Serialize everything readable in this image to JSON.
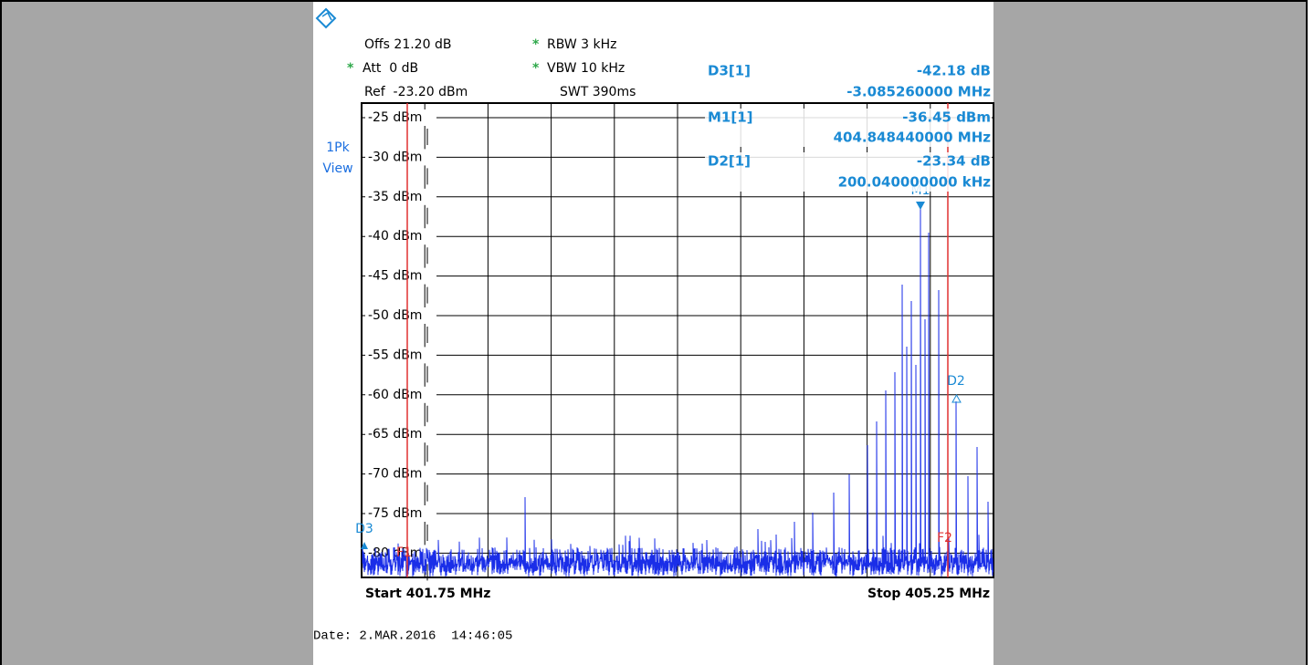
{
  "header": {
    "asterisk": "*",
    "offs": "Offs 21.20 dB",
    "rbw": "RBW 3 kHz",
    "att": "Att  0 dB",
    "vbw": "VBW 10 kHz",
    "ref": "Ref  -23.20 dBm",
    "swt": "SWT 390ms"
  },
  "trace": {
    "mode": "1Pk",
    "view": "View"
  },
  "markers": [
    {
      "label": "D3[1]",
      "value": "-42.18 dB",
      "freq": "-3.085260000 MHz"
    },
    {
      "label": "M1[1]",
      "value": "-36.45 dBm",
      "freq": "404.848440000 MHz"
    },
    {
      "label": "D2[1]",
      "value": "-23.34 dB",
      "freq": "200.040000000 kHz"
    }
  ],
  "levels": [
    "-25 dBm",
    "-30 dBm",
    "-35 dBm",
    "-40 dBm",
    "-45 dBm",
    "-50 dBm",
    "-55 dBm",
    "-60 dBm",
    "-65 dBm",
    "-70 dBm",
    "-75 dBm",
    "-80 dBm"
  ],
  "plot_markers": {
    "m1": "M1",
    "d2": "D2",
    "d3": "D3",
    "f1": "F1",
    "f2": "F2"
  },
  "footer": {
    "start": "Start 401.75 MHz",
    "stop": "Stop 405.25 MHz",
    "date": "Date: 2.MAR.2016  14:46:05"
  }
}
